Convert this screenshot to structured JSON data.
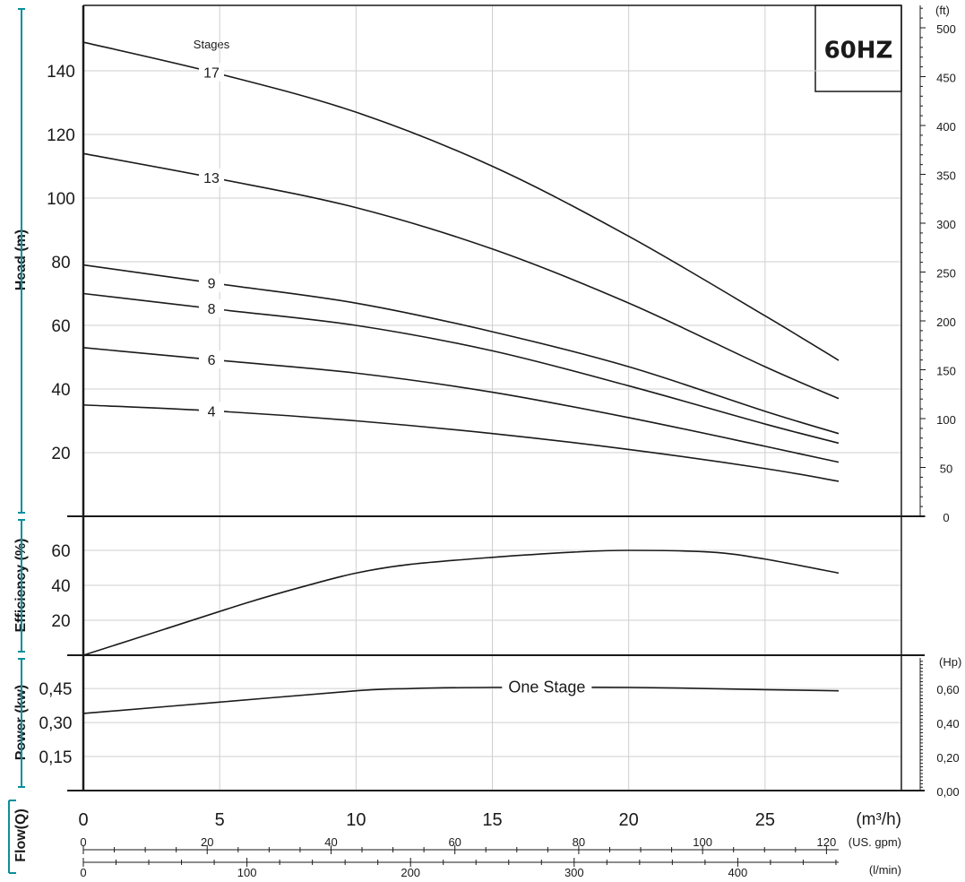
{
  "accent": "#0a8f9a",
  "badge": "60HZ",
  "chart_data": [
    {
      "name": "head",
      "type": "line",
      "ylabel": "Head (m)",
      "y2label": "(ft)",
      "xlim": [
        0,
        30
      ],
      "ylim": [
        0,
        160
      ],
      "y2lim": [
        0,
        500
      ],
      "yticks": [
        20,
        40,
        60,
        80,
        100,
        120,
        140
      ],
      "y2ticks": [
        0,
        50,
        100,
        150,
        200,
        250,
        300,
        350,
        400,
        450,
        500
      ],
      "grid": true,
      "stages_label": "Stages",
      "series": [
        {
          "name": "17",
          "x": [
            0,
            5,
            10,
            15,
            20,
            25,
            27.7
          ],
          "y": [
            149,
            139,
            127,
            110,
            88,
            63,
            49
          ]
        },
        {
          "name": "13",
          "x": [
            0,
            5,
            10,
            15,
            20,
            25,
            27.7
          ],
          "y": [
            114,
            106,
            97,
            84,
            67,
            47,
            37
          ]
        },
        {
          "name": "9",
          "x": [
            0,
            5,
            10,
            15,
            20,
            25,
            27.7
          ],
          "y": [
            79,
            73,
            67,
            58,
            47,
            33,
            26
          ]
        },
        {
          "name": "8",
          "x": [
            0,
            5,
            10,
            15,
            20,
            25,
            27.7
          ],
          "y": [
            70,
            65,
            60,
            52,
            41,
            29,
            23
          ]
        },
        {
          "name": "6",
          "x": [
            0,
            5,
            10,
            15,
            20,
            25,
            27.7
          ],
          "y": [
            53,
            49,
            45,
            39,
            31,
            22,
            17
          ]
        },
        {
          "name": "4",
          "x": [
            0,
            5,
            10,
            15,
            20,
            25,
            27.7
          ],
          "y": [
            35,
            33,
            30,
            26,
            21,
            15,
            11
          ]
        }
      ]
    },
    {
      "name": "efficiency",
      "type": "line",
      "ylabel": "Efficiency (%)",
      "ylim": [
        0,
        80
      ],
      "yticks": [
        20,
        40,
        60
      ],
      "series": [
        {
          "x": [
            0,
            3,
            6,
            8,
            10,
            12,
            15,
            18,
            20,
            23,
            25,
            27.7
          ],
          "y": [
            0,
            15,
            30,
            39,
            47,
            52,
            56,
            59,
            60,
            59,
            55,
            47
          ]
        }
      ]
    },
    {
      "name": "power",
      "type": "line",
      "ylabel": "Power (kw)",
      "y2label": "(Hp)",
      "ylim": [
        0,
        0.58
      ],
      "y2lim": [
        0,
        0.78
      ],
      "yticks": [
        "0,15",
        "0,30",
        "0,45"
      ],
      "ytick_values": [
        0.15,
        0.3,
        0.45
      ],
      "y2ticks": [
        "0,00",
        "0,20",
        "0,40",
        "0,60"
      ],
      "y2tick_values": [
        0,
        0.2,
        0.4,
        0.6
      ],
      "series_label": "One Stage",
      "series": [
        {
          "x": [
            0,
            5,
            10,
            12,
            15,
            20,
            25,
            27.7
          ],
          "y": [
            0.34,
            0.39,
            0.44,
            0.45,
            0.455,
            0.455,
            0.445,
            0.44
          ]
        }
      ]
    },
    {
      "name": "flow",
      "xlabel": "Flow(Q)",
      "m3h_unit": "(m³/h)",
      "m3h_ticks": [
        0,
        5,
        10,
        15,
        20,
        25
      ],
      "gpm_unit": "(US. gpm)",
      "gpm_ticks": [
        0,
        20,
        40,
        60,
        80,
        100,
        120
      ],
      "lmin_unit": "(l/min)",
      "lmin_ticks": [
        0,
        100,
        200,
        300,
        400
      ]
    }
  ]
}
